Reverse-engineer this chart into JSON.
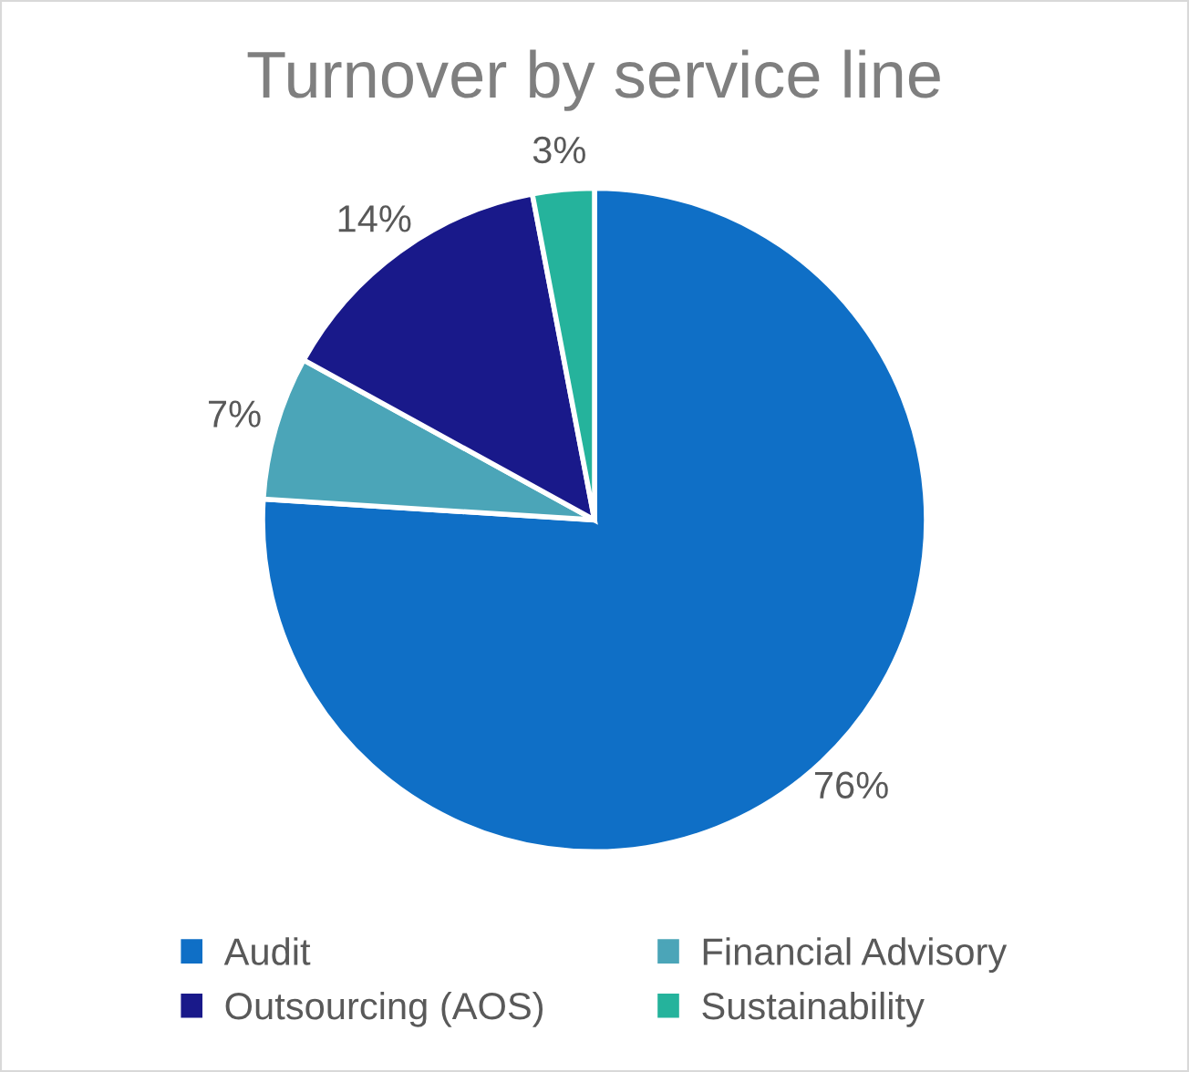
{
  "chart_data": {
    "type": "pie",
    "title": "Turnover by service line",
    "categories": [
      "Audit",
      "Financial Advisory",
      "Outsourcing (AOS)",
      "Sustainability"
    ],
    "values": [
      76,
      7,
      14,
      3
    ],
    "colors": [
      "#0f6fc6",
      "#4ba5b8",
      "#19198a",
      "#25b39c"
    ],
    "value_labels": [
      "76%",
      "7%",
      "14%",
      "3%"
    ],
    "legend": "bottom"
  }
}
